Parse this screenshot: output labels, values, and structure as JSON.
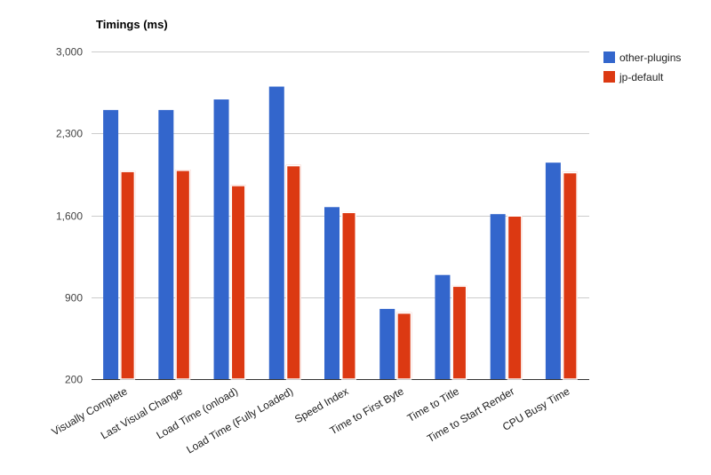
{
  "chart_data": {
    "type": "bar",
    "title": "Timings (ms)",
    "xlabel": "",
    "ylabel": "",
    "ylim": [
      200,
      3000
    ],
    "yticks": [
      200,
      900,
      1600,
      2300,
      3000
    ],
    "ytick_labels": [
      "200",
      "900",
      "1,600",
      "2,300",
      "3,000"
    ],
    "grid": true,
    "legend_position": "right",
    "categories": [
      "Visually Complete",
      "Last Visual Change",
      "Load Time (onload)",
      "Load Time (Fully Loaded)",
      "Speed Index",
      "Time to First Byte",
      "Time to Title",
      "Time to Start Render",
      "CPU Busy Time"
    ],
    "series": [
      {
        "name": "other-plugins",
        "color": "#3366cc",
        "values": [
          2500,
          2500,
          2590,
          2700,
          1670,
          800,
          1090,
          1610,
          2050
        ]
      },
      {
        "name": "jp-default",
        "color": "#dc3912",
        "values": [
          1980,
          1990,
          1860,
          2030,
          1630,
          770,
          1000,
          1600,
          1970
        ]
      }
    ]
  }
}
